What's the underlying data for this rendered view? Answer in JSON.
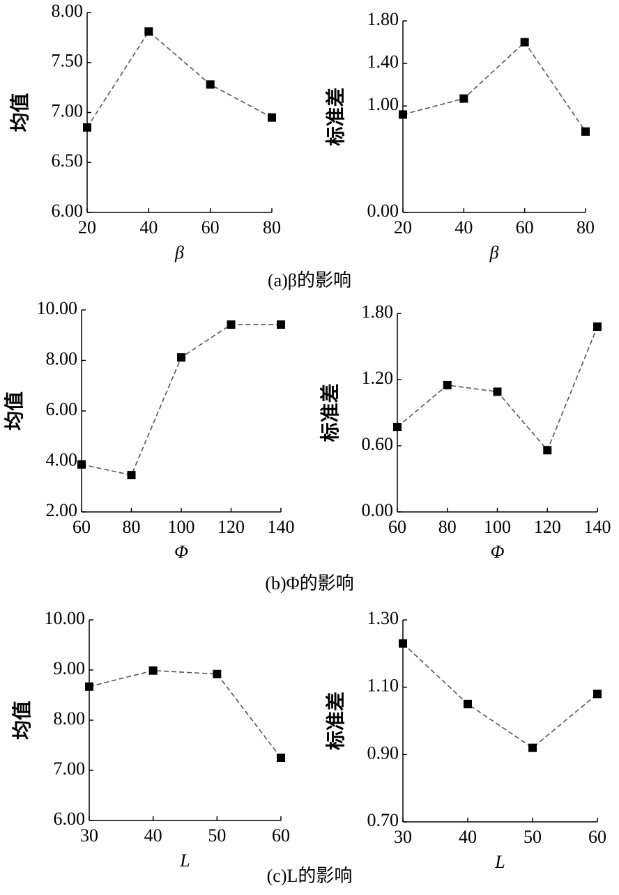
{
  "chart_data": [
    {
      "type": "line",
      "xlabel": "β",
      "ylabel": "均值",
      "x": [
        20,
        40,
        60,
        80
      ],
      "values": [
        6.85,
        7.81,
        7.28,
        6.95
      ],
      "color": "#000000",
      "line_color": "#555555",
      "xlim": [
        20,
        80
      ],
      "xticks": [
        20,
        40,
        60,
        80
      ],
      "ylim": [
        6,
        8
      ],
      "yticks": [
        {
          "value": 6,
          "label": "6.00"
        },
        {
          "value": 6.5,
          "label": "6.50"
        },
        {
          "value": 7,
          "label": "7.00"
        },
        {
          "value": 7.5,
          "label": "7.50"
        },
        {
          "value": 8,
          "label": "8.00"
        }
      ]
    },
    {
      "type": "line",
      "xlabel": "β",
      "ylabel": "标准差",
      "x": [
        20,
        40,
        60,
        80
      ],
      "values": [
        0.92,
        1.07,
        1.6,
        0.76
      ],
      "color": "#000000",
      "line_color": "#555555",
      "xlim": [
        20,
        80
      ],
      "xticks": [
        20,
        40,
        60,
        80
      ],
      "ylim": [
        0,
        1.8
      ],
      "yticks": [
        {
          "value": 0,
          "label": "0.00"
        },
        {
          "value": 1,
          "label": "1.00"
        },
        {
          "value": 1.4,
          "label": "1.40"
        },
        {
          "value": 1.8,
          "label": "1.80"
        }
      ]
    },
    {
      "type": "line",
      "xlabel": "Φ",
      "ylabel": "均值",
      "x": [
        60,
        80,
        100,
        120,
        140
      ],
      "values": [
        3.88,
        3.46,
        8.12,
        9.42,
        9.42
      ],
      "color": "#000000",
      "line_color": "#555555",
      "xlim": [
        60,
        140
      ],
      "xticks": [
        60,
        80,
        100,
        120,
        140
      ],
      "ylim": [
        2,
        10
      ],
      "yticks": [
        {
          "value": 2,
          "label": "2.00"
        },
        {
          "value": 4,
          "label": "4.00"
        },
        {
          "value": 6,
          "label": "6.00"
        },
        {
          "value": 8,
          "label": "8.00"
        },
        {
          "value": 10,
          "label": "10.00"
        }
      ]
    },
    {
      "type": "line",
      "xlabel": "Φ",
      "ylabel": "标准差",
      "x": [
        60,
        80,
        100,
        120,
        140
      ],
      "values": [
        0.77,
        1.15,
        1.09,
        0.56,
        1.68
      ],
      "color": "#000000",
      "line_color": "#555555",
      "xlim": [
        60,
        140
      ],
      "xticks": [
        60,
        80,
        100,
        120,
        140
      ],
      "ylim": [
        0,
        1.8
      ],
      "yticks": [
        {
          "value": 0,
          "label": "0.00"
        },
        {
          "value": 0.6,
          "label": "0.60"
        },
        {
          "value": 1.2,
          "label": "1.20"
        },
        {
          "value": 1.8,
          "label": "1.80"
        }
      ]
    },
    {
      "type": "line",
      "xlabel": "L",
      "ylabel": "均值",
      "x": [
        30,
        40,
        50,
        60
      ],
      "values": [
        8.67,
        8.99,
        8.92,
        7.25
      ],
      "color": "#000000",
      "line_color": "#555555",
      "xlim": [
        30,
        60
      ],
      "xticks": [
        30,
        40,
        50,
        60
      ],
      "ylim": [
        6,
        10
      ],
      "yticks": [
        {
          "value": 6,
          "label": "6.00"
        },
        {
          "value": 7,
          "label": "7.00"
        },
        {
          "value": 8,
          "label": "8.00"
        },
        {
          "value": 9,
          "label": "9.00"
        },
        {
          "value": 10,
          "label": "10.00"
        }
      ]
    },
    {
      "type": "line",
      "xlabel": "L",
      "ylabel": "标准差",
      "x": [
        30,
        40,
        50,
        60
      ],
      "values": [
        1.23,
        1.05,
        0.92,
        1.08
      ],
      "color": "#000000",
      "line_color": "#555555",
      "xlim": [
        30,
        60
      ],
      "xticks": [
        30,
        40,
        50,
        60
      ],
      "ylim": [
        0.7,
        1.3
      ],
      "yticks": [
        {
          "value": 0.7,
          "label": "0.70"
        },
        {
          "value": 0.9,
          "label": "0.90"
        },
        {
          "value": 1.1,
          "label": "1.10"
        },
        {
          "value": 1.3,
          "label": "1.30"
        }
      ]
    }
  ],
  "captions": [
    "(a)β的影响",
    "(b)Φ的影响",
    "(c)L的影响"
  ]
}
